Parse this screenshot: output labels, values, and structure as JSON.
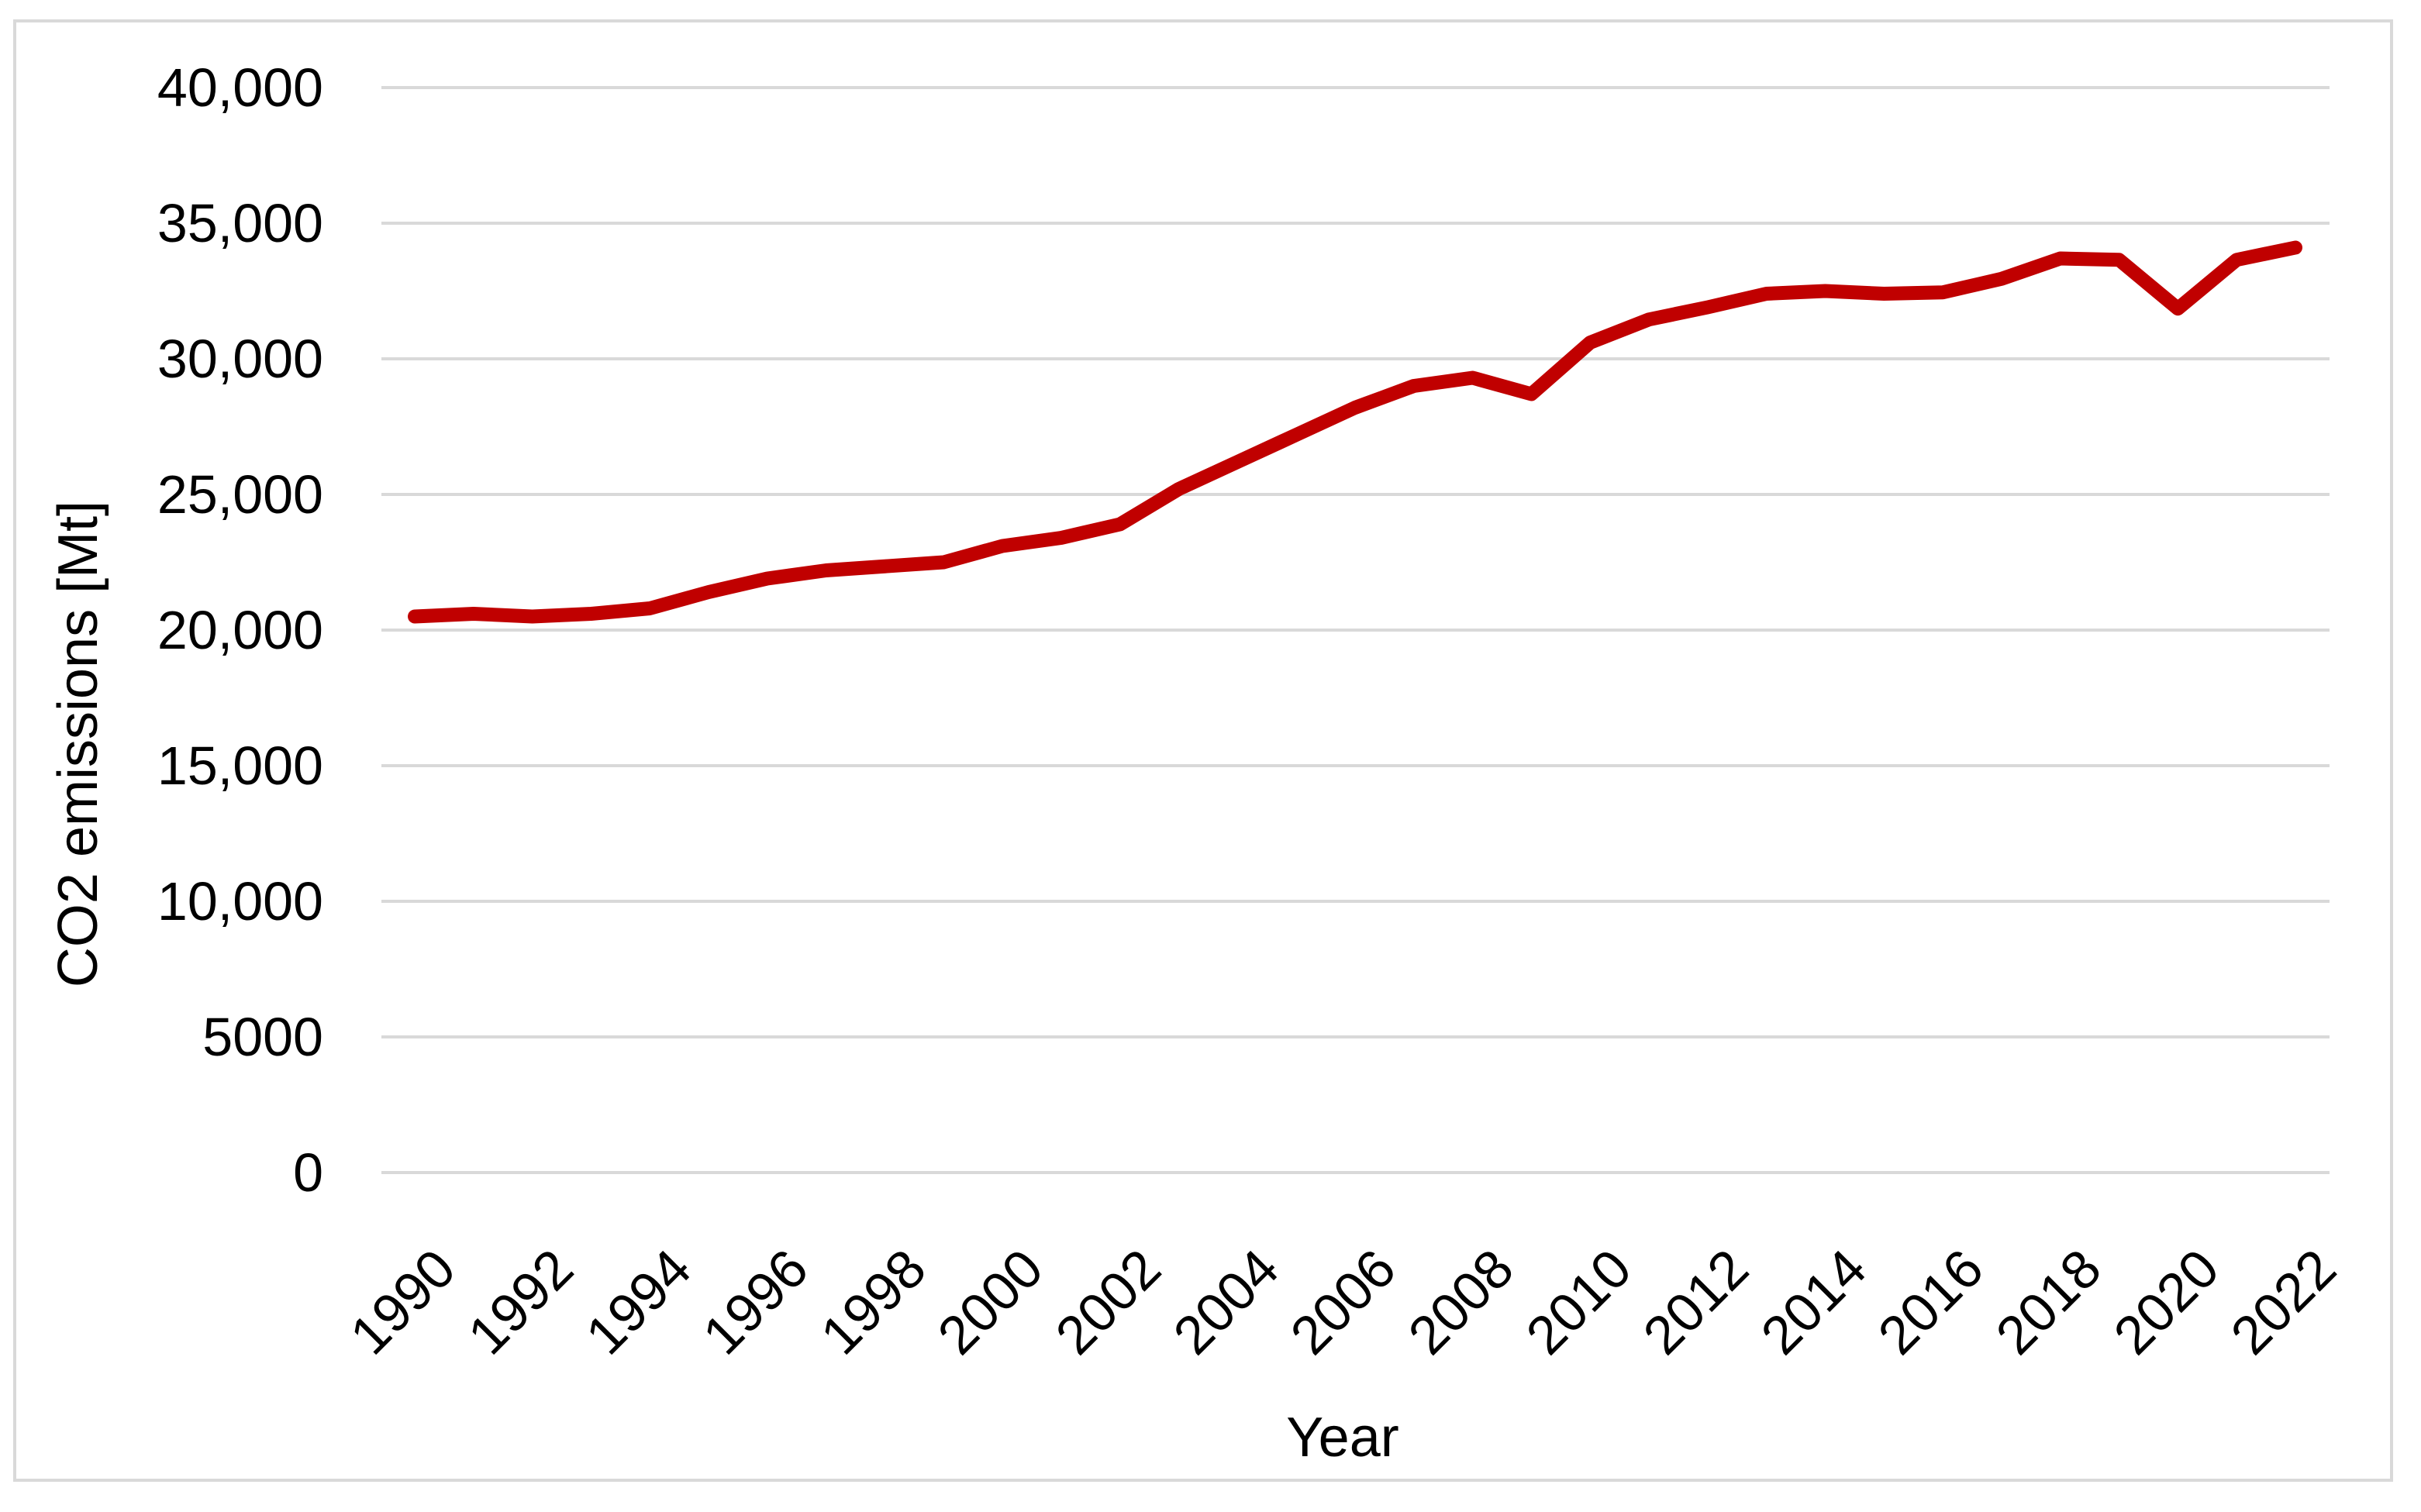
{
  "figure": {
    "y_axis_title": "CO2 emissions [Mt]",
    "x_axis_title": "Year",
    "y_ticks": [
      {
        "value": 40000,
        "label": "40,000"
      },
      {
        "value": 35000,
        "label": "35,000"
      },
      {
        "value": 30000,
        "label": "30,000"
      },
      {
        "value": 25000,
        "label": "25,000"
      },
      {
        "value": 20000,
        "label": "20,000"
      },
      {
        "value": 15000,
        "label": "15,000"
      },
      {
        "value": 10000,
        "label": "10,000"
      },
      {
        "value": 5000,
        "label": "5000"
      },
      {
        "value": 0,
        "label": "0"
      }
    ],
    "x_ticks": [
      1990,
      1992,
      1994,
      1996,
      1998,
      2000,
      2002,
      2004,
      2006,
      2008,
      2010,
      2012,
      2014,
      2016,
      2018,
      2020,
      2022
    ],
    "colors": {
      "line": "#c00000",
      "gridline": "#d9d9d9",
      "axis_line": "#d9d9d9",
      "frame": "#d9d9d9",
      "text": "#000000"
    }
  },
  "chart_data": {
    "type": "line",
    "title": "",
    "xlabel": "Year",
    "ylabel": "CO2 emissions [Mt]",
    "x": [
      1990,
      1991,
      1992,
      1993,
      1994,
      1995,
      1996,
      1997,
      1998,
      1999,
      2000,
      2001,
      2002,
      2003,
      2004,
      2005,
      2006,
      2007,
      2008,
      2009,
      2010,
      2011,
      2012,
      2013,
      2014,
      2015,
      2016,
      2017,
      2018,
      2019,
      2020,
      2021,
      2022
    ],
    "series": [
      {
        "name": "CO2 emissions [Mt]",
        "color": "#c00000",
        "values": [
          20500,
          20600,
          20500,
          20600,
          20800,
          21400,
          21900,
          22200,
          22350,
          22500,
          23100,
          23400,
          23900,
          25200,
          26200,
          27200,
          28200,
          29000,
          29300,
          28700,
          30600,
          31450,
          31900,
          32400,
          32500,
          32400,
          32450,
          32950,
          33700,
          33650,
          31850,
          33650,
          34100
        ]
      }
    ],
    "ylim": [
      0,
      40000
    ],
    "xlim": [
      1990,
      2022
    ],
    "ytick_step": 5000,
    "xticks_every": 2,
    "grid": "horizontal-only",
    "legend": false,
    "x_tick_label_rotation_deg": 45
  }
}
